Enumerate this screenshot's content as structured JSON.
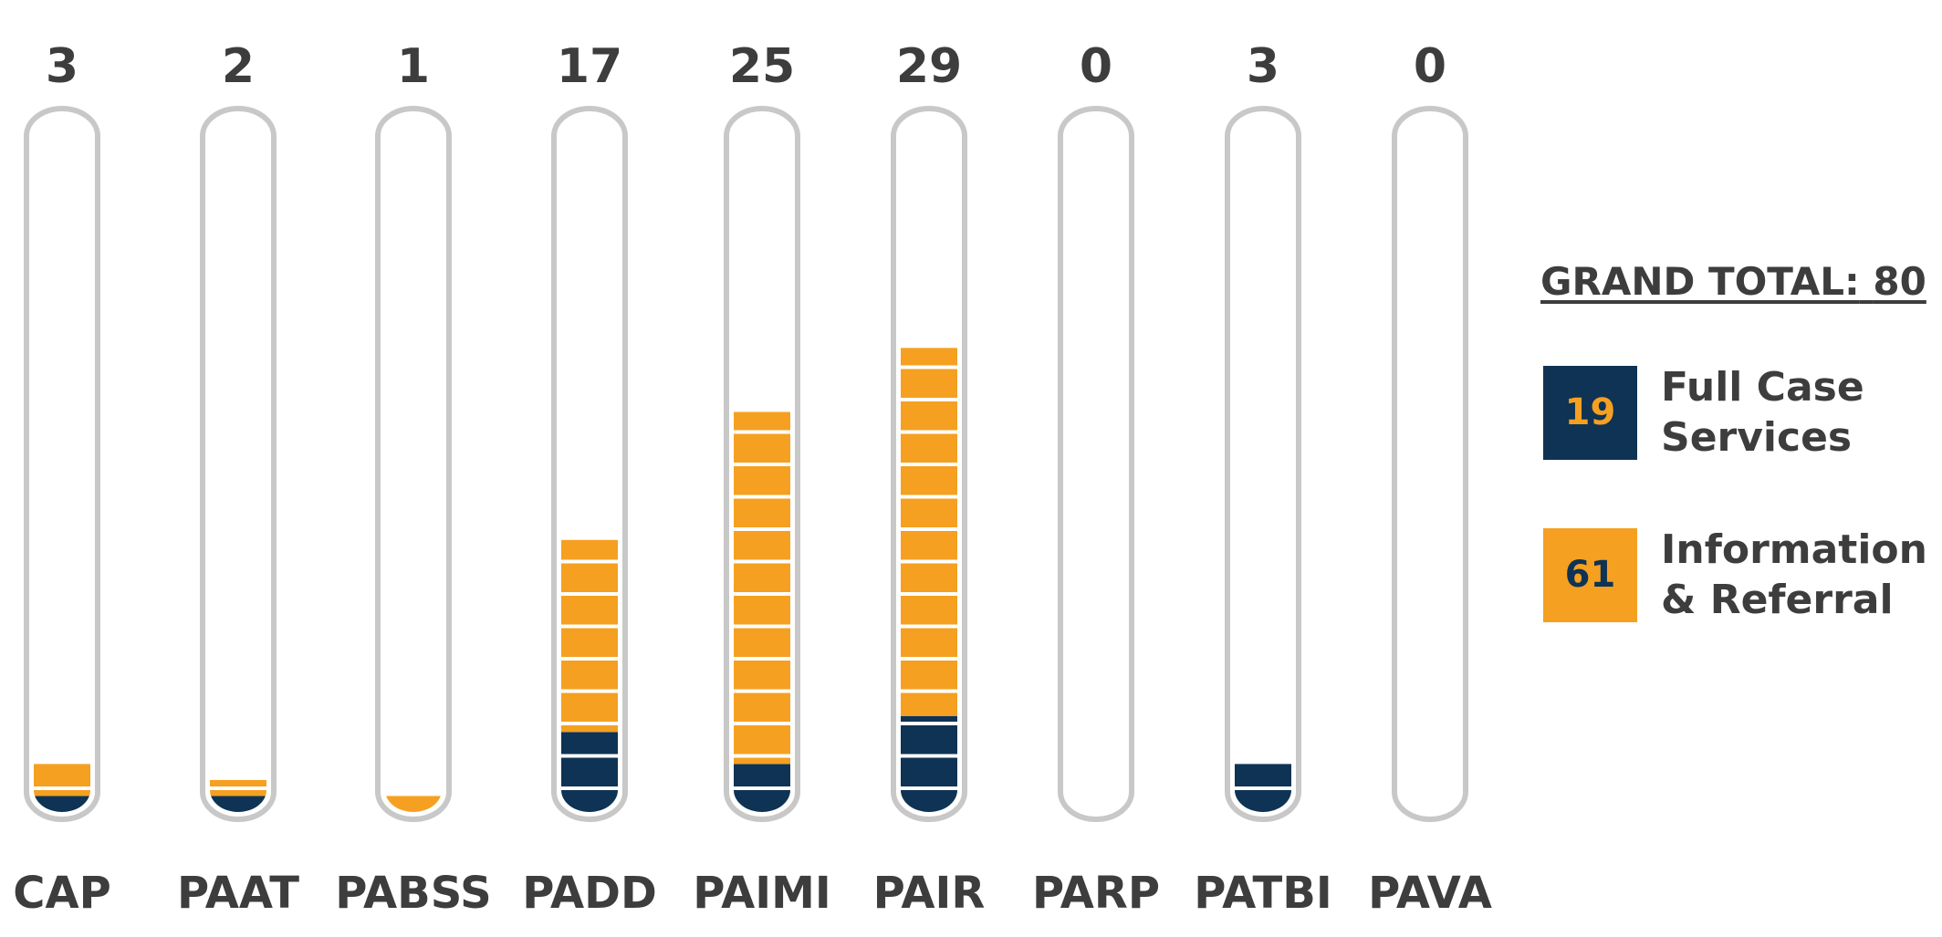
{
  "chart_data": {
    "type": "tube_stacked",
    "categories": [
      "CAP",
      "PAAT",
      "PABSS",
      "PADD",
      "PAIMI",
      "PAIR",
      "PARP",
      "PATBI",
      "PAVA"
    ],
    "totals": [
      3,
      2,
      1,
      17,
      25,
      29,
      0,
      3,
      0
    ],
    "series": [
      {
        "name": "Full Case Services",
        "color": "#0e3354",
        "total": 19,
        "values": [
          1,
          1,
          0,
          5,
          3,
          6,
          0,
          3,
          0
        ]
      },
      {
        "name": "Information & Referral",
        "color": "#f5a021",
        "total": 61,
        "values": [
          2,
          1,
          1,
          12,
          22,
          23,
          0,
          0,
          0
        ]
      }
    ],
    "grand_total": {
      "label": "GRAND TOTAL:",
      "value": 80
    }
  }
}
